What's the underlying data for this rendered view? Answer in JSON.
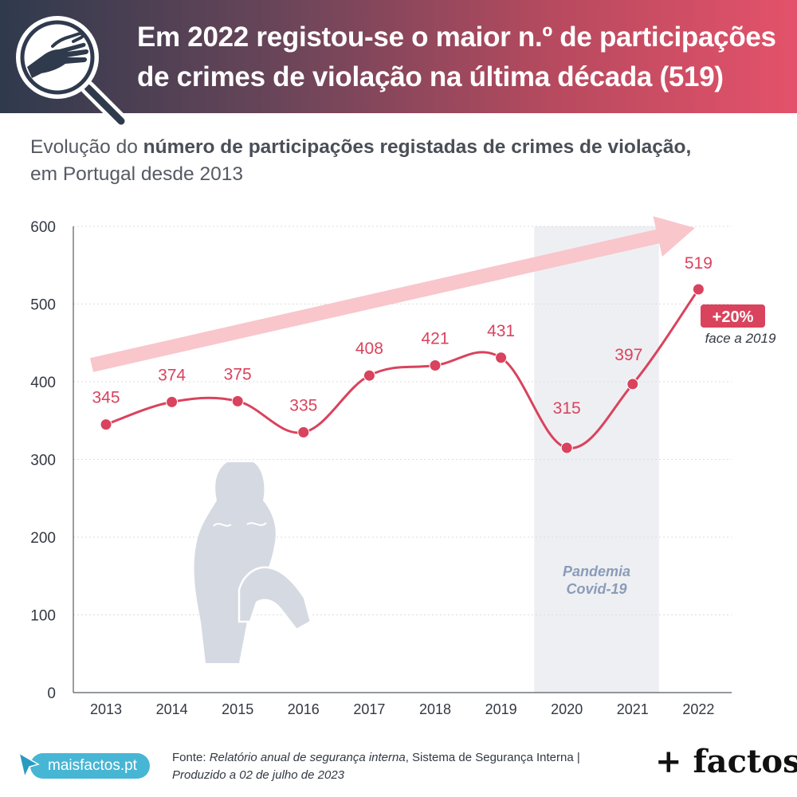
{
  "header": {
    "title": "Em 2022 registou-se o maior n.º de participações de crimes de violação na última década (519)",
    "icon": "magnifier-hand-icon"
  },
  "subtitle": {
    "prefix": "Evolução do ",
    "bold": "número de participações registadas de crimes de violação,",
    "suffix": " em Portugal desde 2013"
  },
  "chart_data": {
    "type": "line",
    "x": [
      "2013",
      "2014",
      "2015",
      "2016",
      "2017",
      "2018",
      "2019",
      "2020",
      "2021",
      "2022"
    ],
    "values": [
      345,
      374,
      375,
      335,
      408,
      421,
      431,
      315,
      397,
      519
    ],
    "data_labels": [
      "345",
      "374",
      "375",
      "335",
      "408",
      "421",
      "431",
      "315",
      "397",
      "519"
    ],
    "y_ticks": [
      "0",
      "100",
      "200",
      "300",
      "400",
      "500",
      "600"
    ],
    "ylim": [
      0,
      600
    ],
    "grid": true,
    "shaded_region": {
      "from": "2020",
      "to": "2021",
      "label_line1": "Pandemia",
      "label_line2": "Covid-19"
    },
    "annotation": {
      "badge": "+20%",
      "note": "face a 2019"
    },
    "colors": {
      "line": "#d9435d",
      "marker": "#d9435d",
      "label": "#d9435d",
      "trend_arrow": "#f8c6cb",
      "shade": "#eeeff3",
      "grid": "#dcdde2",
      "axis_text": "#333842",
      "pandemic_text": "#8a9cb8",
      "silhouette": "#d5d9e2"
    }
  },
  "footer": {
    "badge_label": "maisfactos.pt",
    "source_label": "Fonte: ",
    "source_title": "Relatório anual de segurança interna",
    "source_org": ", Sistema de Segurança Interna | ",
    "produced": "Produzido a 02 de julho de 2023",
    "brand": "+ factos"
  }
}
